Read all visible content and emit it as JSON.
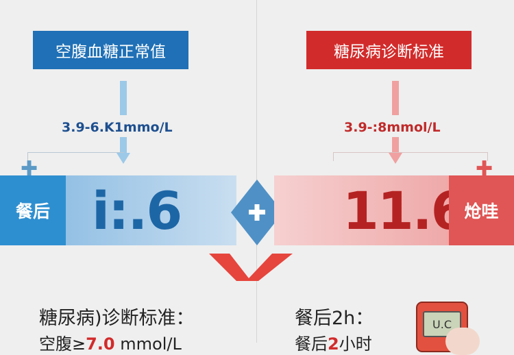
{
  "colors": {
    "blue": "#1f70b6",
    "red": "#d22b2b",
    "background": "#efefef"
  },
  "left": {
    "title": "空腹血糖正常值",
    "range": "3.9-6.K1mmo/L",
    "band_label": "餐后",
    "big_value": "i:.6"
  },
  "right": {
    "title": "糖尿病诊断标准",
    "range": "3.9-:8mmol/L",
    "band_label": "炝哇",
    "big_value": "11.6"
  },
  "center": {
    "icon": "plus-icon"
  },
  "bottom": {
    "left_heading": "糖尿病)诊断标准：",
    "left_line_prefix": "空腹≥",
    "left_line_value": "7.0",
    "left_line_unit": " mmol/L",
    "right_heading": "餐后2h：",
    "right_line_prefix": "餐后",
    "right_line_value": "2",
    "right_line_suffix": "小时",
    "meter_display": "U.C"
  }
}
